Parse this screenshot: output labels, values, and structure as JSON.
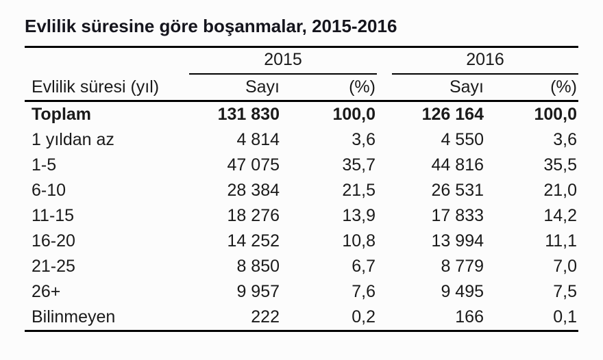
{
  "title": "Evlilik süresine göre boşanmalar, 2015-2016",
  "table": {
    "row_header_label": "Evlilik süresi (yıl)",
    "year_groups": [
      {
        "year": "2015",
        "columns": [
          "Sayı",
          "(%)"
        ]
      },
      {
        "year": "2016",
        "columns": [
          "Sayı",
          "(%)"
        ]
      }
    ],
    "rows": [
      {
        "label": "Toplam",
        "values": [
          "131 830",
          "100,0",
          "126 164",
          "100,0"
        ]
      },
      {
        "label": "1 yıldan az",
        "values": [
          "4 814",
          "3,6",
          "4 550",
          "3,6"
        ]
      },
      {
        "label": "1-5",
        "values": [
          "47 075",
          "35,7",
          "44 816",
          "35,5"
        ]
      },
      {
        "label": "6-10",
        "values": [
          "28 384",
          "21,5",
          "26 531",
          "21,0"
        ]
      },
      {
        "label": "11-15",
        "values": [
          "18 276",
          "13,9",
          "17 833",
          "14,2"
        ]
      },
      {
        "label": "16-20",
        "values": [
          "14 252",
          "10,8",
          "13 994",
          "11,1"
        ]
      },
      {
        "label": "21-25",
        "values": [
          "8 850",
          "6,7",
          "8 779",
          "7,0"
        ]
      },
      {
        "label": "26+",
        "values": [
          "9 957",
          "7,6",
          "9 495",
          "7,5"
        ]
      },
      {
        "label": "Bilinmeyen",
        "values": [
          "222",
          "0,2",
          "166",
          "0,1"
        ]
      }
    ]
  },
  "chart_data": {
    "type": "table",
    "title": "Evlilik süresine göre boşanmalar, 2015-2016",
    "row_label_header": "Evlilik süresi (yıl)",
    "categories": [
      "Toplam",
      "1 yıldan az",
      "1-5",
      "6-10",
      "11-15",
      "16-20",
      "21-25",
      "26+",
      "Bilinmeyen"
    ],
    "series": [
      {
        "name": "2015 Sayı",
        "values": [
          131830,
          4814,
          47075,
          28384,
          18276,
          14252,
          8850,
          9957,
          222
        ]
      },
      {
        "name": "2015 (%)",
        "values": [
          100.0,
          3.6,
          35.7,
          21.5,
          13.9,
          10.8,
          6.7,
          7.6,
          0.2
        ]
      },
      {
        "name": "2016 Sayı",
        "values": [
          126164,
          4550,
          44816,
          26531,
          17833,
          13994,
          8779,
          9495,
          166
        ]
      },
      {
        "name": "2016 (%)",
        "values": [
          100.0,
          3.6,
          35.5,
          21.0,
          14.2,
          11.1,
          7.0,
          7.5,
          0.1
        ]
      }
    ]
  },
  "colors": {
    "background": "#fcfcfc",
    "text": "#1a1a1a",
    "title_text": "#15151d",
    "rule": "#000000"
  }
}
